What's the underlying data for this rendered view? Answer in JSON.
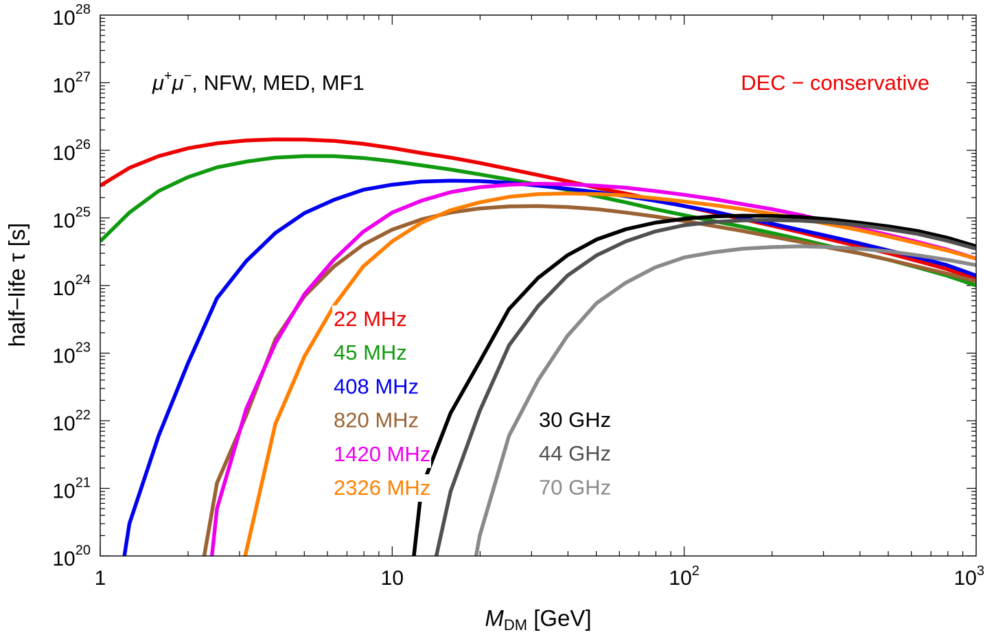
{
  "chart_data": {
    "type": "line",
    "xscale": "log",
    "yscale": "log",
    "xlim": [
      1,
      1000
    ],
    "ylim": [
      1e+20,
      1e+28
    ],
    "grid": false,
    "xlabel": {
      "main": "M",
      "sub": "DM",
      "rest": " [GeV]"
    },
    "ylabel": "half−life τ [s]",
    "x_ticks": [
      {
        "value": 1,
        "base": "1",
        "exp": ""
      },
      {
        "value": 10,
        "base": "10",
        "exp": ""
      },
      {
        "value": 100,
        "base": "10",
        "exp": "2"
      },
      {
        "value": 1000,
        "base": "10",
        "exp": "3"
      }
    ],
    "y_ticks": [
      {
        "value": 1e+20,
        "base": "10",
        "exp": "20"
      },
      {
        "value": 1e+21,
        "base": "10",
        "exp": "21"
      },
      {
        "value": 1e+22,
        "base": "10",
        "exp": "22"
      },
      {
        "value": 1e+23,
        "base": "10",
        "exp": "23"
      },
      {
        "value": 1e+24,
        "base": "10",
        "exp": "24"
      },
      {
        "value": 1e+25,
        "base": "10",
        "exp": "25"
      },
      {
        "value": 1e+26,
        "base": "10",
        "exp": "26"
      },
      {
        "value": 1e+27,
        "base": "10",
        "exp": "27"
      },
      {
        "value": 1e+28,
        "base": "10",
        "exp": "28"
      }
    ],
    "annotations": {
      "channel": {
        "mu": "μ",
        "sup_plus": "+",
        "sup_minus": "−",
        "rest": ", NFW, MED, MF1"
      },
      "method": "DEC − conservative",
      "method_color": "#ee0000"
    },
    "series": [
      {
        "name": "22 MHz",
        "color": "#ee0000",
        "points": [
          [
            1,
            3e+25
          ],
          [
            1.259,
            5.5e+25
          ],
          [
            1.585,
            8.2e+25
          ],
          [
            1.995,
            1.07e+26
          ],
          [
            2.512,
            1.27e+26
          ],
          [
            3.162,
            1.4e+26
          ],
          [
            3.981,
            1.45e+26
          ],
          [
            5.012,
            1.44e+26
          ],
          [
            6.31,
            1.38e+26
          ],
          [
            7.943,
            1.25e+26
          ],
          [
            10,
            1.08e+26
          ],
          [
            12.59,
            9.1e+25
          ],
          [
            15.85,
            7.8e+25
          ],
          [
            19.95,
            6.5e+25
          ],
          [
            25.12,
            5.3e+25
          ],
          [
            31.62,
            4.3e+25
          ],
          [
            39.81,
            3.5e+25
          ],
          [
            50.12,
            2.8e+25
          ],
          [
            63.1,
            2.3e+25
          ],
          [
            79.43,
            1.85e+25
          ],
          [
            100,
            1.5e+25
          ],
          [
            125.9,
            1.2e+25
          ],
          [
            158.5,
            9.6e+24
          ],
          [
            199.5,
            7.7e+24
          ],
          [
            251.2,
            6.1e+24
          ],
          [
            316.2,
            4.8e+24
          ],
          [
            398.1,
            3.8e+24
          ],
          [
            501.2,
            3e+24
          ],
          [
            631,
            2.3e+24
          ],
          [
            794.3,
            1.75e+24
          ],
          [
            1000,
            1.25e+24
          ]
        ]
      },
      {
        "name": "45 MHz",
        "color": "#109a10",
        "points": [
          [
            1,
            4.5e+24
          ],
          [
            1.259,
            1.2e+25
          ],
          [
            1.585,
            2.5e+25
          ],
          [
            1.995,
            4e+25
          ],
          [
            2.512,
            5.6e+25
          ],
          [
            3.162,
            6.8e+25
          ],
          [
            3.981,
            7.8e+25
          ],
          [
            5.012,
            8.2e+25
          ],
          [
            6.31,
            8.2e+25
          ],
          [
            7.943,
            7.7e+25
          ],
          [
            10,
            6.9e+25
          ],
          [
            12.59,
            6e+25
          ],
          [
            15.85,
            5.2e+25
          ],
          [
            19.95,
            4.4e+25
          ],
          [
            25.12,
            3.7e+25
          ],
          [
            31.62,
            3.1e+25
          ],
          [
            39.81,
            2.6e+25
          ],
          [
            50.12,
            2.1e+25
          ],
          [
            63.1,
            1.7e+25
          ],
          [
            79.43,
            1.35e+25
          ],
          [
            100,
            1.1e+25
          ],
          [
            125.9,
            9e+24
          ],
          [
            158.5,
            7.4e+24
          ],
          [
            199.5,
            6e+24
          ],
          [
            251.2,
            4.8e+24
          ],
          [
            316.2,
            3.8e+24
          ],
          [
            398.1,
            3e+24
          ],
          [
            501.2,
            2.4e+24
          ],
          [
            631,
            1.85e+24
          ],
          [
            794.3,
            1.4e+24
          ],
          [
            1000,
            1e+24
          ]
        ]
      },
      {
        "name": "408 MHz",
        "color": "#0000ee",
        "points": [
          [
            1.2,
            8e+19
          ],
          [
            1.259,
            3e+20
          ],
          [
            1.585,
            6e+21
          ],
          [
            1.995,
            7e+22
          ],
          [
            2.512,
            6.5e+23
          ],
          [
            3.162,
            2.3e+24
          ],
          [
            3.981,
            6e+24
          ],
          [
            5.012,
            1.18e+25
          ],
          [
            6.31,
            1.85e+25
          ],
          [
            7.943,
            2.6e+25
          ],
          [
            10,
            3.1e+25
          ],
          [
            12.59,
            3.45e+25
          ],
          [
            15.85,
            3.55e+25
          ],
          [
            19.95,
            3.5e+25
          ],
          [
            25.12,
            3.3e+25
          ],
          [
            31.62,
            3e+25
          ],
          [
            39.81,
            2.7e+25
          ],
          [
            50.12,
            2.4e+25
          ],
          [
            63.1,
            2.1e+25
          ],
          [
            79.43,
            1.8e+25
          ],
          [
            100,
            1.5e+25
          ],
          [
            125.9,
            1.25e+25
          ],
          [
            158.5,
            1e+25
          ],
          [
            199.5,
            8.2e+24
          ],
          [
            251.2,
            6.6e+24
          ],
          [
            316.2,
            5.3e+24
          ],
          [
            398.1,
            4.2e+24
          ],
          [
            501.2,
            3.3e+24
          ],
          [
            631,
            2.6e+24
          ],
          [
            794.3,
            2e+24
          ],
          [
            1000,
            1.4e+24
          ]
        ]
      },
      {
        "name": "820 MHz",
        "color": "#9b6233",
        "points": [
          [
            2.25,
            8e+19
          ],
          [
            2.512,
            1.2e+21
          ],
          [
            3.162,
            1.2e+22
          ],
          [
            3.981,
            1.6e+23
          ],
          [
            5.012,
            7e+23
          ],
          [
            6.31,
            1.9e+24
          ],
          [
            7.943,
            4e+24
          ],
          [
            10,
            6.7e+24
          ],
          [
            12.59,
            9.5e+24
          ],
          [
            15.85,
            1.2e+25
          ],
          [
            19.95,
            1.38e+25
          ],
          [
            25.12,
            1.48e+25
          ],
          [
            31.62,
            1.5e+25
          ],
          [
            39.81,
            1.45e+25
          ],
          [
            50.12,
            1.35e+25
          ],
          [
            63.1,
            1.2e+25
          ],
          [
            79.43,
            1.05e+25
          ],
          [
            100,
            9e+24
          ],
          [
            125.9,
            7.6e+24
          ],
          [
            158.5,
            6.4e+24
          ],
          [
            199.5,
            5.3e+24
          ],
          [
            251.2,
            4.4e+24
          ],
          [
            316.2,
            3.6e+24
          ],
          [
            398.1,
            3e+24
          ],
          [
            501.2,
            2.4e+24
          ],
          [
            631,
            1.9e+24
          ],
          [
            794.3,
            1.5e+24
          ],
          [
            1000,
            1.15e+24
          ]
        ]
      },
      {
        "name": "1420 MHz",
        "color": "#ee00ee",
        "points": [
          [
            2.4,
            8e+19
          ],
          [
            2.512,
            5e+20
          ],
          [
            3.162,
            1.5e+22
          ],
          [
            3.981,
            1.4e+23
          ],
          [
            5.012,
            7.5e+23
          ],
          [
            6.31,
            2.4e+24
          ],
          [
            7.943,
            6.2e+24
          ],
          [
            10,
            1.2e+25
          ],
          [
            12.59,
            1.8e+25
          ],
          [
            15.85,
            2.4e+25
          ],
          [
            19.95,
            2.85e+25
          ],
          [
            25.12,
            3.1e+25
          ],
          [
            31.62,
            3.2e+25
          ],
          [
            39.81,
            3.15e+25
          ],
          [
            50.12,
            3e+25
          ],
          [
            63.1,
            2.8e+25
          ],
          [
            79.43,
            2.5e+25
          ],
          [
            100,
            2.2e+25
          ],
          [
            125.9,
            1.9e+25
          ],
          [
            158.5,
            1.6e+25
          ],
          [
            199.5,
            1.35e+25
          ],
          [
            251.2,
            1.1e+25
          ],
          [
            316.2,
            8.8e+24
          ],
          [
            398.1,
            7e+24
          ],
          [
            501.2,
            5.6e+24
          ],
          [
            631,
            4.4e+24
          ],
          [
            794.3,
            3.4e+24
          ],
          [
            1000,
            2.5e+24
          ]
        ]
      },
      {
        "name": "2326 MHz",
        "color": "#ff8000",
        "points": [
          [
            3.1,
            8e+19
          ],
          [
            3.981,
            9e+21
          ],
          [
            5.012,
            9e+22
          ],
          [
            6.31,
            5e+23
          ],
          [
            7.943,
            1.9e+24
          ],
          [
            10,
            4.5e+24
          ],
          [
            12.59,
            8.5e+24
          ],
          [
            15.85,
            1.3e+25
          ],
          [
            19.95,
            1.7e+25
          ],
          [
            25.12,
            2.05e+25
          ],
          [
            31.62,
            2.25e+25
          ],
          [
            39.81,
            2.3e+25
          ],
          [
            50.12,
            2.25e+25
          ],
          [
            63.1,
            2.15e+25
          ],
          [
            79.43,
            1.95e+25
          ],
          [
            100,
            1.75e+25
          ],
          [
            125.9,
            1.55e+25
          ],
          [
            158.5,
            1.35e+25
          ],
          [
            199.5,
            1.15e+25
          ],
          [
            251.2,
            9.7e+24
          ],
          [
            316.2,
            8e+24
          ],
          [
            398.1,
            6.6e+24
          ],
          [
            501.2,
            5.3e+24
          ],
          [
            631,
            4.2e+24
          ],
          [
            794.3,
            3.3e+24
          ],
          [
            1000,
            2.5e+24
          ]
        ]
      },
      {
        "name": "30 GHz",
        "color": "#000000",
        "points": [
          [
            11.8,
            8e+19
          ],
          [
            12.59,
            1e+21
          ],
          [
            15.85,
            1.3e+22
          ],
          [
            19.95,
            7.5e+22
          ],
          [
            25.12,
            4.5e+23
          ],
          [
            31.62,
            1.3e+24
          ],
          [
            39.81,
            2.8e+24
          ],
          [
            50.12,
            4.8e+24
          ],
          [
            63.1,
            6.8e+24
          ],
          [
            79.43,
            8.5e+24
          ],
          [
            100,
            9.7e+24
          ],
          [
            125.9,
            1.05e+25
          ],
          [
            158.5,
            1.08e+25
          ],
          [
            199.5,
            1.07e+25
          ],
          [
            251.2,
            1.03e+25
          ],
          [
            316.2,
            9.5e+24
          ],
          [
            398.1,
            8.5e+24
          ],
          [
            501.2,
            7.5e+24
          ],
          [
            631,
            6.4e+24
          ],
          [
            794.3,
            5.1e+24
          ],
          [
            1000,
            3.8e+24
          ]
        ]
      },
      {
        "name": "44 GHz",
        "color": "#505050",
        "points": [
          [
            14,
            8e+19
          ],
          [
            15.85,
            9e+20
          ],
          [
            19.95,
            1.4e+22
          ],
          [
            25.12,
            1.3e+23
          ],
          [
            31.62,
            5e+23
          ],
          [
            39.81,
            1.4e+24
          ],
          [
            50.12,
            2.8e+24
          ],
          [
            63.1,
            4.5e+24
          ],
          [
            79.43,
            6.3e+24
          ],
          [
            100,
            7.8e+24
          ],
          [
            125.9,
            8.7e+24
          ],
          [
            158.5,
            9.2e+24
          ],
          [
            199.5,
            9.3e+24
          ],
          [
            251.2,
            9.1e+24
          ],
          [
            316.2,
            8.6e+24
          ],
          [
            398.1,
            7.8e+24
          ],
          [
            501.2,
            6.8e+24
          ],
          [
            631,
            5.8e+24
          ],
          [
            794.3,
            4.6e+24
          ],
          [
            1000,
            3.5e+24
          ]
        ]
      },
      {
        "name": "70 GHz",
        "color": "#8a8a8a",
        "points": [
          [
            19.2,
            8e+19
          ],
          [
            19.95,
            2e+20
          ],
          [
            25.12,
            6e+21
          ],
          [
            31.62,
            4e+22
          ],
          [
            39.81,
            1.8e+23
          ],
          [
            50.12,
            5.5e+23
          ],
          [
            63.1,
            1.1e+24
          ],
          [
            79.43,
            1.85e+24
          ],
          [
            100,
            2.6e+24
          ],
          [
            125.9,
            3.1e+24
          ],
          [
            158.5,
            3.5e+24
          ],
          [
            199.5,
            3.7e+24
          ],
          [
            251.2,
            3.8e+24
          ],
          [
            316.2,
            3.7e+24
          ],
          [
            398.1,
            3.5e+24
          ],
          [
            501.2,
            3.2e+24
          ],
          [
            631,
            2.8e+24
          ],
          [
            794.3,
            2.4e+24
          ],
          [
            1000,
            2e+24
          ]
        ]
      }
    ]
  }
}
